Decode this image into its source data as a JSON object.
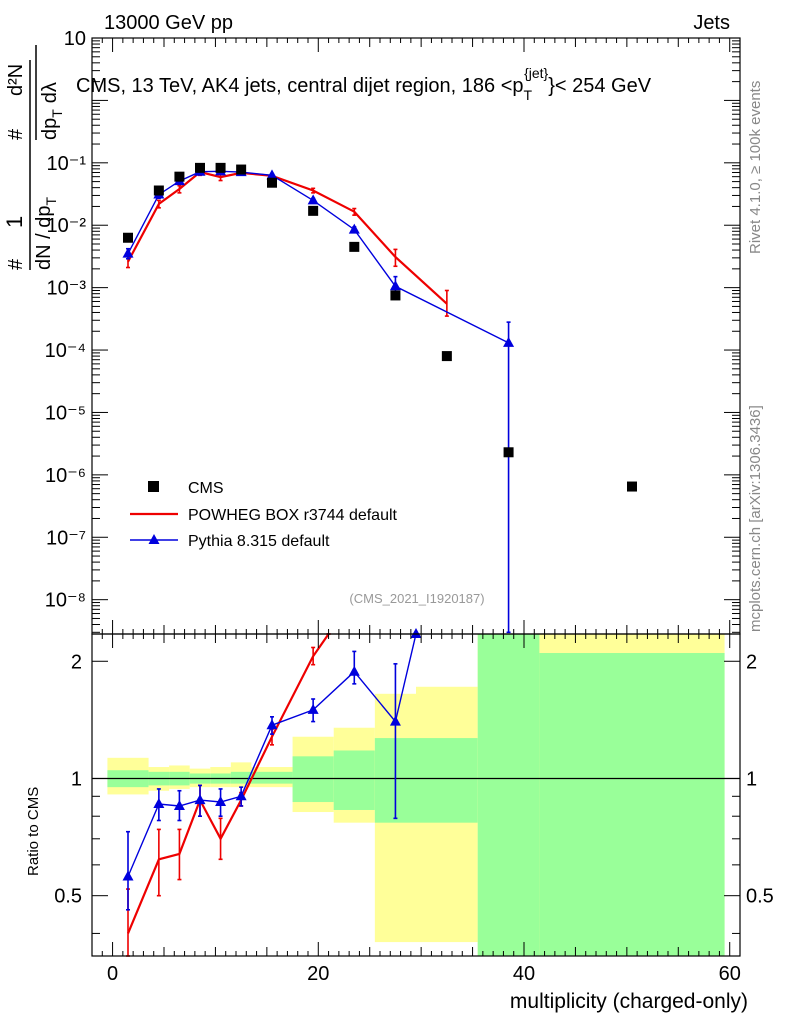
{
  "header": {
    "left": "13000 GeV pp",
    "right": "Jets",
    "subtitle": "CMS, 13 TeV, AK4 jets, central dijet region, 186 <p",
    "subtitle_sup": "{jet}",
    "subtitle_sub": "T",
    "subtitle_end": "}< 254 GeV",
    "analysis_tag": "(CMS_2021_I1920187)",
    "side_rivet": "Rivet 4.1.0, ≥ 100k events",
    "side_mcplots": "mcplots.cern.ch [arXiv:1306.3436]"
  },
  "ylabel_main": {
    "n1": "#",
    "n2": "1",
    "d1": "#",
    "d2": "dN / dp",
    "d3": "T",
    "r1": "d²N",
    "r2": "dp",
    "r3": "T",
    "r4": "dλ",
    "r5": "#"
  },
  "colors": {
    "cms": "#000000",
    "powheg": "#ee0000",
    "pythia": "#0000dd",
    "band_inner": "#99ff99",
    "band_outer": "#ffff99"
  },
  "chart_data": [
    {
      "type": "scatter",
      "panel": "main",
      "yscale": "log",
      "xlim": [
        -2,
        61
      ],
      "ylim_log10": [
        -8.55,
        1
      ],
      "ytick_labels": [
        "10",
        "10⁻¹",
        "10⁻²",
        "10⁻³",
        "10⁻⁴",
        "10⁻⁵",
        "10⁻⁶",
        "10⁻⁷",
        "10⁻⁸"
      ],
      "ytick_values_log10": [
        1,
        -1,
        -2,
        -3,
        -4,
        -5,
        -6,
        -7,
        -8
      ],
      "legend": {
        "position": "lower-left",
        "entries": [
          "CMS",
          "POWHEG BOX r3744 default",
          "Pythia 8.315 default"
        ]
      },
      "series": [
        {
          "name": "CMS",
          "marker": "square",
          "x": [
            1.5,
            4.5,
            6.5,
            8.5,
            10.5,
            12.5,
            15.5,
            19.5,
            23.5,
            27.5,
            32.5,
            38.5,
            50.5
          ],
          "values": [
            0.0063,
            0.036,
            0.06,
            0.083,
            0.083,
            0.078,
            0.048,
            0.017,
            0.0045,
            0.00075,
            8e-05,
            2.3e-06,
            6.5e-07
          ]
        },
        {
          "name": "POWHEG BOX r3744 default",
          "marker": "line",
          "x": [
            1.5,
            4.5,
            6.5,
            8.5,
            10.5,
            12.5,
            15.5,
            19.5,
            23.5,
            27.5,
            32.5
          ],
          "values": [
            0.0026,
            0.022,
            0.038,
            0.071,
            0.059,
            0.069,
            0.062,
            0.036,
            0.0165,
            0.0031,
            0.00055
          ],
          "err_low": [
            0.0021,
            0.019,
            0.033,
            0.063,
            0.052,
            0.064,
            0.058,
            0.033,
            0.0145,
            0.0022,
            0.00035
          ],
          "err_high": [
            0.0032,
            0.025,
            0.043,
            0.079,
            0.066,
            0.074,
            0.066,
            0.039,
            0.0185,
            0.0041,
            0.0009
          ]
        },
        {
          "name": "Pythia 8.315 default",
          "marker": "triangle",
          "x": [
            1.5,
            4.5,
            6.5,
            8.5,
            10.5,
            12.5,
            15.5,
            19.5,
            23.5,
            27.5,
            38.5
          ],
          "values": [
            0.0035,
            0.031,
            0.051,
            0.072,
            0.073,
            0.071,
            0.063,
            0.025,
            0.0085,
            0.00105,
            0.00013
          ],
          "err_low": [
            0.0029,
            0.027,
            0.046,
            0.067,
            0.068,
            0.067,
            0.06,
            0.023,
            0.0076,
            0.0007,
            3e-09
          ],
          "err_high": [
            0.0042,
            0.035,
            0.056,
            0.077,
            0.078,
            0.075,
            0.066,
            0.027,
            0.0094,
            0.0015,
            0.00028
          ]
        }
      ]
    },
    {
      "type": "scatter",
      "panel": "ratio",
      "ylabel": "Ratio to CMS",
      "xlabel": "multiplicity (charged-only)",
      "xlim": [
        -2,
        61
      ],
      "ylim": [
        0.35,
        2.35
      ],
      "xtick_labels": [
        "0",
        "20",
        "40",
        "60"
      ],
      "xtick_values": [
        0,
        20,
        40,
        60
      ],
      "ytick_labels": [
        "0.5",
        "1",
        "2"
      ],
      "ytick_values": [
        0.5,
        1,
        2
      ],
      "reference_line": 1,
      "bands": {
        "x_edges": [
          -0.5,
          3.5,
          5.5,
          7.5,
          9.5,
          11.5,
          13.5,
          17.5,
          21.5,
          25.5,
          29.5,
          35.5,
          41.5,
          59.5
        ],
        "inner_low": [
          0.95,
          0.96,
          0.96,
          0.97,
          0.97,
          0.97,
          0.97,
          0.87,
          0.83,
          0.77,
          0.77,
          0.35,
          0.35
        ],
        "inner_high": [
          1.05,
          1.04,
          1.04,
          1.03,
          1.03,
          1.04,
          1.04,
          1.14,
          1.18,
          1.27,
          1.27,
          2.35,
          2.1
        ],
        "outer_low": [
          0.91,
          0.93,
          0.94,
          0.95,
          0.95,
          0.95,
          0.95,
          0.82,
          0.77,
          0.38,
          0.38,
          0.35,
          0.35
        ],
        "outer_high": [
          1.13,
          1.07,
          1.08,
          1.06,
          1.07,
          1.1,
          1.07,
          1.28,
          1.35,
          1.65,
          1.72,
          2.35,
          2.35
        ]
      },
      "series": [
        {
          "name": "POWHEG BOX r3744 default",
          "x": [
            1.5,
            4.5,
            6.5,
            8.5,
            10.5,
            12.5,
            15.5,
            19.5,
            21.0
          ],
          "values": [
            0.4,
            0.62,
            0.64,
            0.88,
            0.7,
            0.88,
            1.28,
            2.06,
            2.35
          ],
          "err_low": [
            0.35,
            0.5,
            0.55,
            0.8,
            0.62,
            0.85,
            1.22,
            1.96,
            2.35
          ],
          "err_high": [
            0.52,
            0.74,
            0.74,
            0.96,
            0.79,
            0.92,
            1.34,
            2.17,
            2.35
          ]
        },
        {
          "name": "Pythia 8.315 default",
          "x": [
            1.5,
            4.5,
            6.5,
            8.5,
            10.5,
            12.5,
            15.5,
            19.5,
            23.5,
            27.5,
            29.5
          ],
          "values": [
            0.56,
            0.86,
            0.85,
            0.88,
            0.87,
            0.9,
            1.37,
            1.5,
            1.88,
            1.4,
            2.35
          ],
          "err_low": [
            0.46,
            0.78,
            0.78,
            0.8,
            0.8,
            0.85,
            1.3,
            1.4,
            1.75,
            0.79,
            2.35
          ],
          "err_high": [
            0.73,
            0.94,
            0.93,
            0.96,
            0.94,
            0.95,
            1.44,
            1.6,
            2.12,
            1.97,
            2.35
          ]
        }
      ]
    }
  ]
}
